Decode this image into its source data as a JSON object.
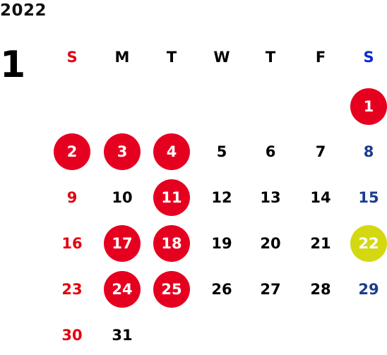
{
  "year": "2022",
  "month": "1",
  "colors": {
    "default": "#000000",
    "sunday": "#e3000f",
    "saturday": "#1b3c8f",
    "saturday_header": "#0a2ad6",
    "holiday_circle": "#e60020",
    "special_circle": "#d4d811",
    "circle_text": "#ffffff"
  },
  "weekdays": [
    "S",
    "M",
    "T",
    "W",
    "T",
    "F",
    "S"
  ],
  "days": [
    {
      "label": "1",
      "col": 6,
      "row": 0,
      "style": "holiday"
    },
    {
      "label": "2",
      "col": 0,
      "row": 1,
      "style": "holiday"
    },
    {
      "label": "3",
      "col": 1,
      "row": 1,
      "style": "holiday"
    },
    {
      "label": "4",
      "col": 2,
      "row": 1,
      "style": "holiday"
    },
    {
      "label": "5",
      "col": 3,
      "row": 1,
      "style": "normal"
    },
    {
      "label": "6",
      "col": 4,
      "row": 1,
      "style": "normal"
    },
    {
      "label": "7",
      "col": 5,
      "row": 1,
      "style": "normal"
    },
    {
      "label": "8",
      "col": 6,
      "row": 1,
      "style": "saturday"
    },
    {
      "label": "9",
      "col": 0,
      "row": 2,
      "style": "sunday"
    },
    {
      "label": "10",
      "col": 1,
      "row": 2,
      "style": "normal"
    },
    {
      "label": "11",
      "col": 2,
      "row": 2,
      "style": "holiday"
    },
    {
      "label": "12",
      "col": 3,
      "row": 2,
      "style": "normal"
    },
    {
      "label": "13",
      "col": 4,
      "row": 2,
      "style": "normal"
    },
    {
      "label": "14",
      "col": 5,
      "row": 2,
      "style": "normal"
    },
    {
      "label": "15",
      "col": 6,
      "row": 2,
      "style": "saturday"
    },
    {
      "label": "16",
      "col": 0,
      "row": 3,
      "style": "sunday"
    },
    {
      "label": "17",
      "col": 1,
      "row": 3,
      "style": "holiday"
    },
    {
      "label": "18",
      "col": 2,
      "row": 3,
      "style": "holiday"
    },
    {
      "label": "19",
      "col": 3,
      "row": 3,
      "style": "normal"
    },
    {
      "label": "20",
      "col": 4,
      "row": 3,
      "style": "normal"
    },
    {
      "label": "21",
      "col": 5,
      "row": 3,
      "style": "normal"
    },
    {
      "label": "22",
      "col": 6,
      "row": 3,
      "style": "special"
    },
    {
      "label": "23",
      "col": 0,
      "row": 4,
      "style": "sunday"
    },
    {
      "label": "24",
      "col": 1,
      "row": 4,
      "style": "holiday"
    },
    {
      "label": "25",
      "col": 2,
      "row": 4,
      "style": "holiday"
    },
    {
      "label": "26",
      "col": 3,
      "row": 4,
      "style": "normal"
    },
    {
      "label": "27",
      "col": 4,
      "row": 4,
      "style": "normal"
    },
    {
      "label": "28",
      "col": 5,
      "row": 4,
      "style": "normal"
    },
    {
      "label": "29",
      "col": 6,
      "row": 4,
      "style": "saturday"
    },
    {
      "label": "30",
      "col": 0,
      "row": 5,
      "style": "sunday"
    },
    {
      "label": "31",
      "col": 1,
      "row": 5,
      "style": "normal"
    }
  ]
}
